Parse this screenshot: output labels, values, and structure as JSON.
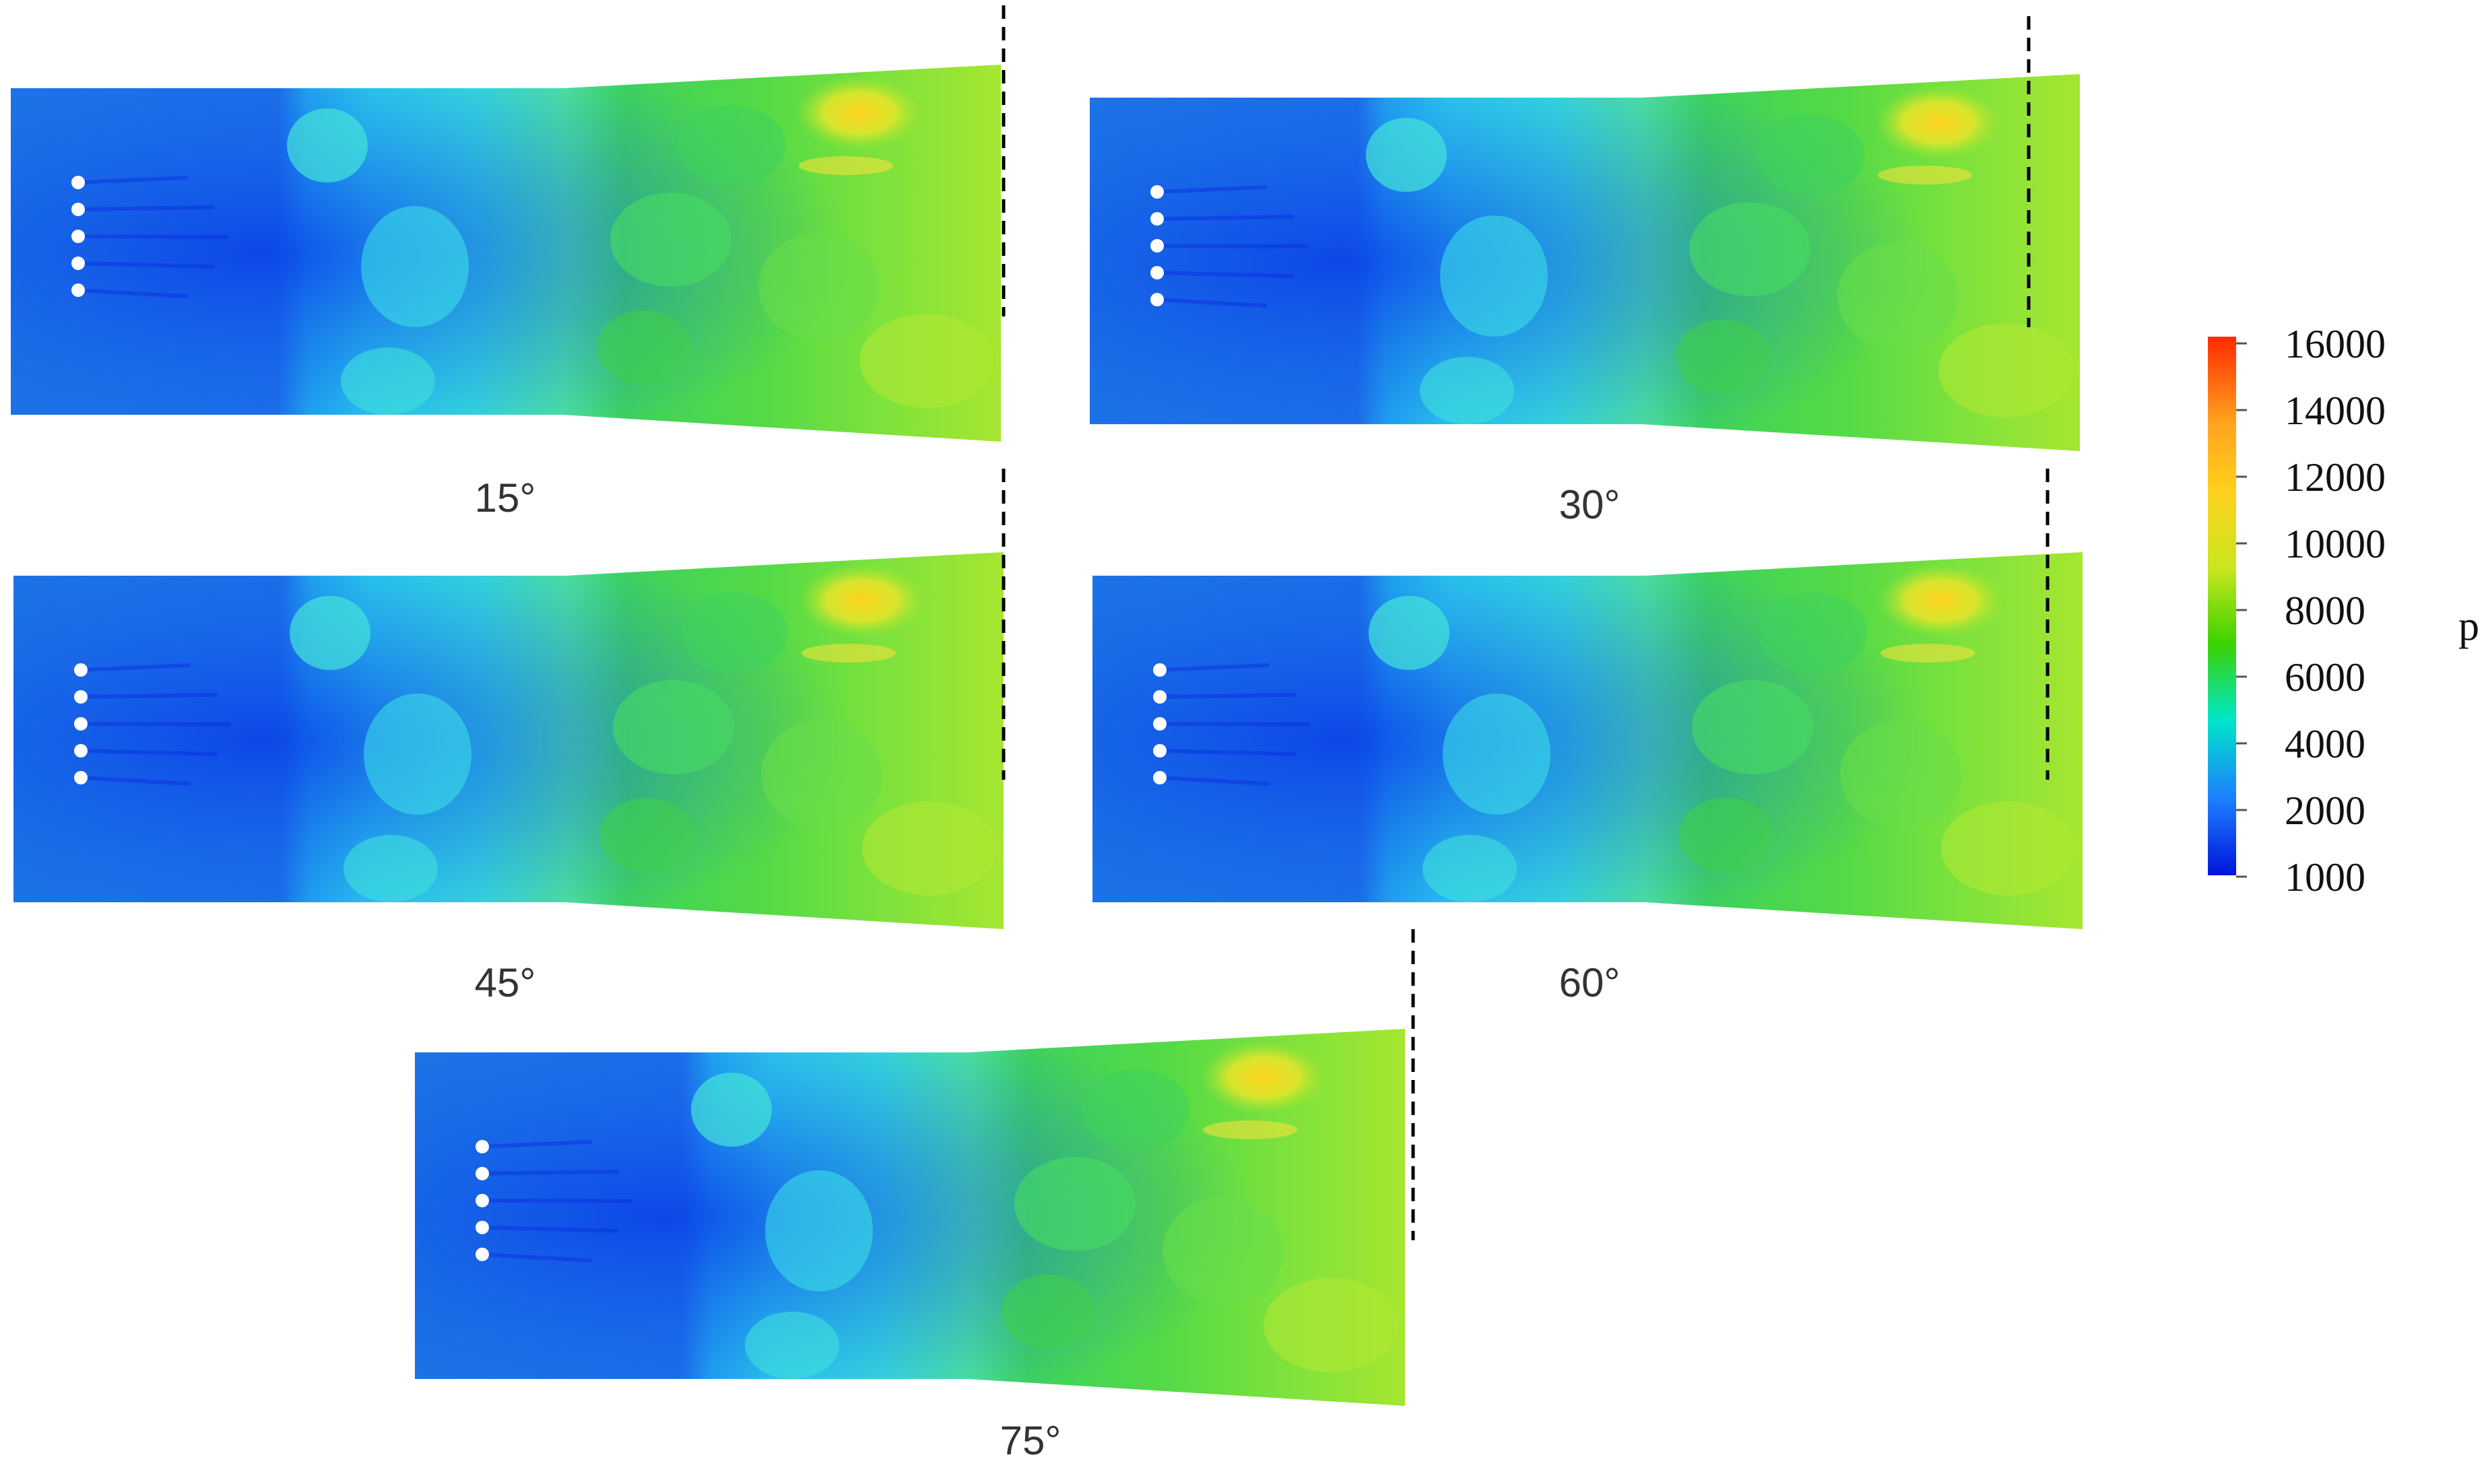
{
  "panels": [
    {
      "label": "15°",
      "jet_angle_deg": 15
    },
    {
      "label": "30°",
      "jet_angle_deg": 30
    },
    {
      "label": "45°",
      "jet_angle_deg": 45
    },
    {
      "label": "60°",
      "jet_angle_deg": 60
    },
    {
      "label": "75°",
      "jet_angle_deg": 75
    }
  ],
  "colorbar": {
    "variable": "p",
    "ticks": [
      "16000",
      "14000",
      "12000",
      "10000",
      "8000",
      "6000",
      "4000",
      "2000",
      "1000"
    ],
    "min": 1000,
    "max": 16000,
    "colors": [
      "#ff2a00",
      "#ffd21e",
      "#c8e61e",
      "#3cd200",
      "#00e6c8",
      "#1e7dff",
      "#0014dc"
    ]
  }
}
